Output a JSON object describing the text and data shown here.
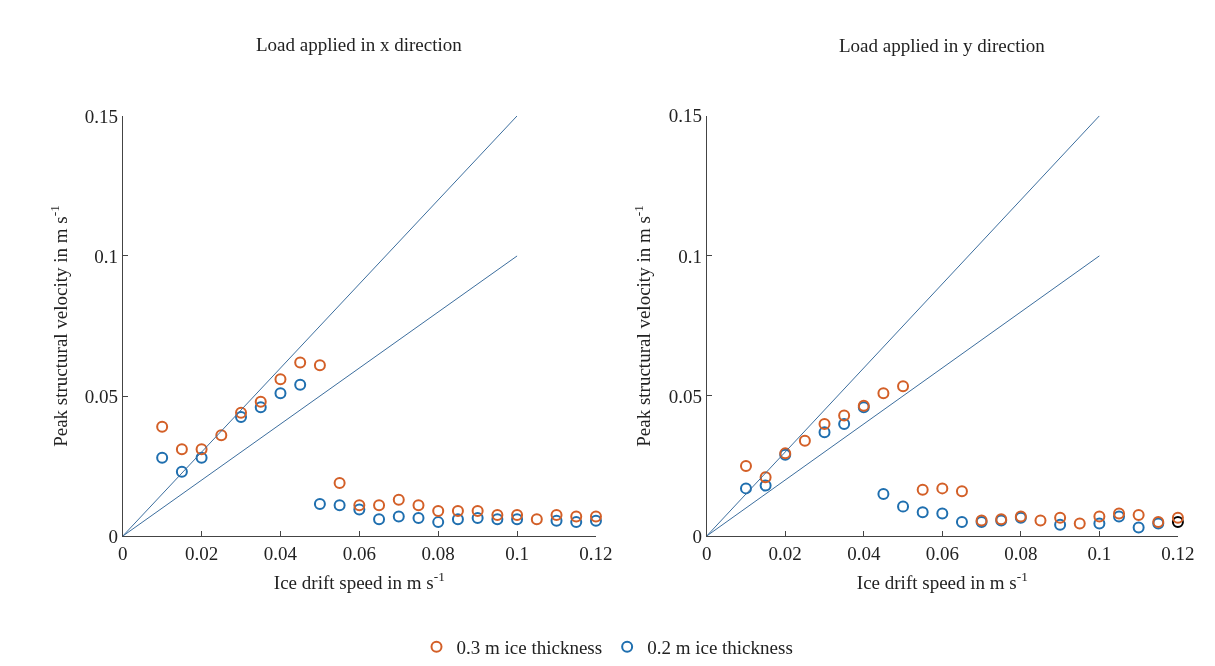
{
  "chart_data": [
    {
      "type": "scatter",
      "title": "Load applied in x direction",
      "xlabel": "Ice drift speed in m s$^{-1}$",
      "ylabel": "Peak structural velocity in m s$^{-1}$",
      "xlim": [
        0,
        0.12
      ],
      "xticks": [
        0,
        0.02,
        0.04,
        0.06,
        0.08,
        0.1,
        0.12
      ],
      "ylim": [
        0,
        0.15
      ],
      "yticks": [
        0,
        0.05,
        0.1,
        0.15
      ],
      "grid": false,
      "legend": "bottom",
      "marker": "circle",
      "series": [
        {
          "type": "line",
          "marker": "none",
          "color": "#3c6e9e",
          "line_style": "solid",
          "x": [
            0,
            0.1
          ],
          "values": [
            0,
            0.15
          ]
        },
        {
          "type": "line",
          "marker": "none",
          "color": "#3c6e9e",
          "line_style": "solid",
          "x": [
            0,
            0.1
          ],
          "values": [
            0,
            0.1
          ]
        },
        {
          "name": "0.3 m ice thickness",
          "color": "#d35f27",
          "x": [
            0.01,
            0.015,
            0.02,
            0.025,
            0.03,
            0.035,
            0.04,
            0.045,
            0.05,
            0.055,
            0.06,
            0.065,
            0.07,
            0.075,
            0.08,
            0.085,
            0.09,
            0.095,
            0.1,
            0.105,
            0.11,
            0.115,
            0.12
          ],
          "values": [
            0.039,
            0.031,
            0.031,
            0.036,
            0.044,
            0.048,
            0.056,
            0.062,
            0.061,
            0.019,
            0.011,
            0.011,
            0.013,
            0.011,
            0.009,
            0.009,
            0.009,
            0.0075,
            0.0075,
            0.006,
            0.0075,
            0.007,
            0.007
          ]
        },
        {
          "name": "0.2 m ice thickness",
          "color": "#1f6faf",
          "x": [
            0.01,
            0.015,
            0.02,
            0.025,
            0.03,
            0.035,
            0.04,
            0.045,
            0.05,
            0.055,
            0.06,
            0.065,
            0.07,
            0.075,
            0.08,
            0.085,
            0.09,
            0.095,
            0.1,
            0.105,
            0.11,
            0.115,
            0.12
          ],
          "values": [
            0.028,
            0.023,
            0.028,
            null,
            0.0425,
            0.046,
            0.051,
            0.054,
            0.0115,
            0.011,
            0.0095,
            0.006,
            0.007,
            0.0065,
            0.005,
            0.006,
            0.0065,
            0.006,
            0.006,
            null,
            0.0055,
            0.005,
            0.0055
          ]
        }
      ]
    },
    {
      "type": "scatter",
      "title": "Load applied in y direction",
      "xlabel": "Ice drift speed in m s$^{-1}$",
      "ylabel": "Peak structural velocity in m s$^{-1}$",
      "xlim": [
        0,
        0.12
      ],
      "xticks": [
        0,
        0.02,
        0.04,
        0.06,
        0.08,
        0.1,
        0.12
      ],
      "ylim": [
        0,
        0.15
      ],
      "yticks": [
        0,
        0.05,
        0.1,
        0.15
      ],
      "grid": false,
      "legend": false,
      "marker": "circle",
      "series": [
        {
          "type": "line",
          "marker": "none",
          "color": "#3c6e9e",
          "line_style": "solid",
          "x": [
            0,
            0.1
          ],
          "values": [
            0,
            0.15
          ]
        },
        {
          "type": "line",
          "marker": "none",
          "color": "#3c6e9e",
          "line_style": "solid",
          "x": [
            0,
            0.1
          ],
          "values": [
            0,
            0.1
          ]
        },
        {
          "name": "0.3 m ice thickness",
          "color": "#d35f27",
          "x": [
            0.01,
            0.015,
            0.02,
            0.025,
            0.03,
            0.035,
            0.04,
            0.045,
            0.05,
            0.055,
            0.06,
            0.065,
            0.07,
            0.075,
            0.08,
            0.085,
            0.09,
            0.095,
            0.1,
            0.105,
            0.11,
            0.115,
            0.12
          ],
          "values": [
            0.025,
            0.021,
            0.0295,
            0.034,
            0.04,
            0.043,
            0.0465,
            0.051,
            0.0535,
            0.0165,
            0.017,
            0.016,
            0.0055,
            0.006,
            0.007,
            0.0055,
            0.0065,
            0.0045,
            0.007,
            0.008,
            0.0075,
            0.005,
            0.0065
          ]
        },
        {
          "name": "0.2 m ice thickness",
          "color": "#1f6faf",
          "x": [
            0.01,
            0.015,
            0.02,
            0.025,
            0.03,
            0.035,
            0.04,
            0.045,
            0.05,
            0.055,
            0.06,
            0.065,
            0.07,
            0.075,
            0.08,
            0.085,
            0.09,
            0.1,
            0.105,
            0.11,
            0.115,
            0.12
          ],
          "values": [
            0.017,
            0.018,
            0.029,
            null,
            0.037,
            0.04,
            0.046,
            0.015,
            0.0105,
            0.0085,
            0.008,
            0.005,
            0.005,
            0.0055,
            0.0065,
            null,
            0.004,
            0.0045,
            0.007,
            0.003,
            0.0045,
            0.005
          ],
          "colors": [
            null,
            null,
            null,
            null,
            null,
            null,
            null,
            null,
            null,
            null,
            null,
            null,
            null,
            null,
            null,
            null,
            null,
            null,
            null,
            null,
            null,
            "#000000"
          ]
        }
      ]
    }
  ]
}
